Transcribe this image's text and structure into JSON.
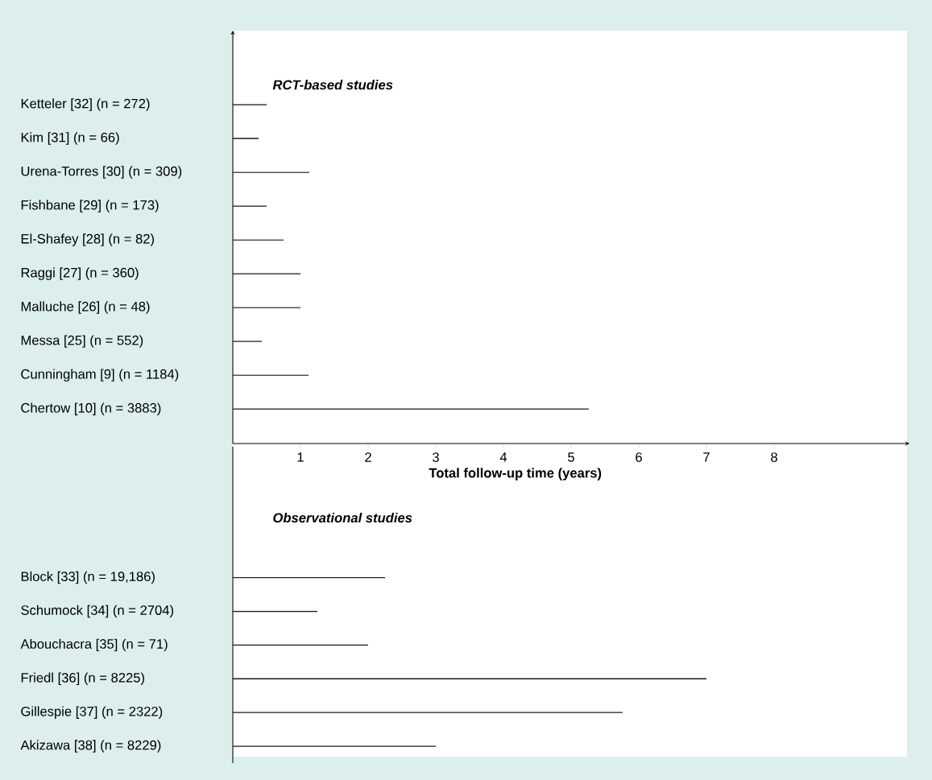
{
  "chart_data": [
    {
      "type": "bar",
      "orientation": "horizontal",
      "title": "RCT-based studies",
      "xlabel": "Total follow-up time (years)",
      "categories": [
        "Ketteler [32] (n = 272)",
        "Kim [31] (n = 66)",
        "Urena-Torres [30] (n = 309)",
        "Fishbane [29] (n = 173)",
        "El-Shafey [28] (n = 82)",
        "Raggi [27] (n = 360)",
        "Malluche [26] (n = 48)",
        "Messa [25] (n = 552)",
        "Cunningham [9] (n = 1184)",
        "Chertow [10] (n = 3883)"
      ],
      "values": [
        0.5,
        0.38,
        1.13,
        0.5,
        0.75,
        1.0,
        1.0,
        0.43,
        1.12,
        5.26
      ],
      "color": "#1a1a1a",
      "xlim": [
        0,
        10
      ],
      "xticks": [
        1,
        2,
        3,
        4,
        5,
        6,
        7,
        8
      ]
    },
    {
      "type": "bar",
      "orientation": "horizontal",
      "title": "Observational studies",
      "categories": [
        "Block [33] (n = 19,186)",
        "Schumock [34] (n = 2704)",
        "Abouchacra [35] (n = 71)",
        "Friedl [36] (n = 8225)",
        "Gillespie [37] (n = 2322)",
        "Akizawa [38] (n = 8229)"
      ],
      "values": [
        2.25,
        1.25,
        2.0,
        7.0,
        5.76,
        3.0
      ],
      "color": "#1a1a1a",
      "xlim": [
        0,
        10
      ],
      "tick_labels": "y"
    }
  ]
}
